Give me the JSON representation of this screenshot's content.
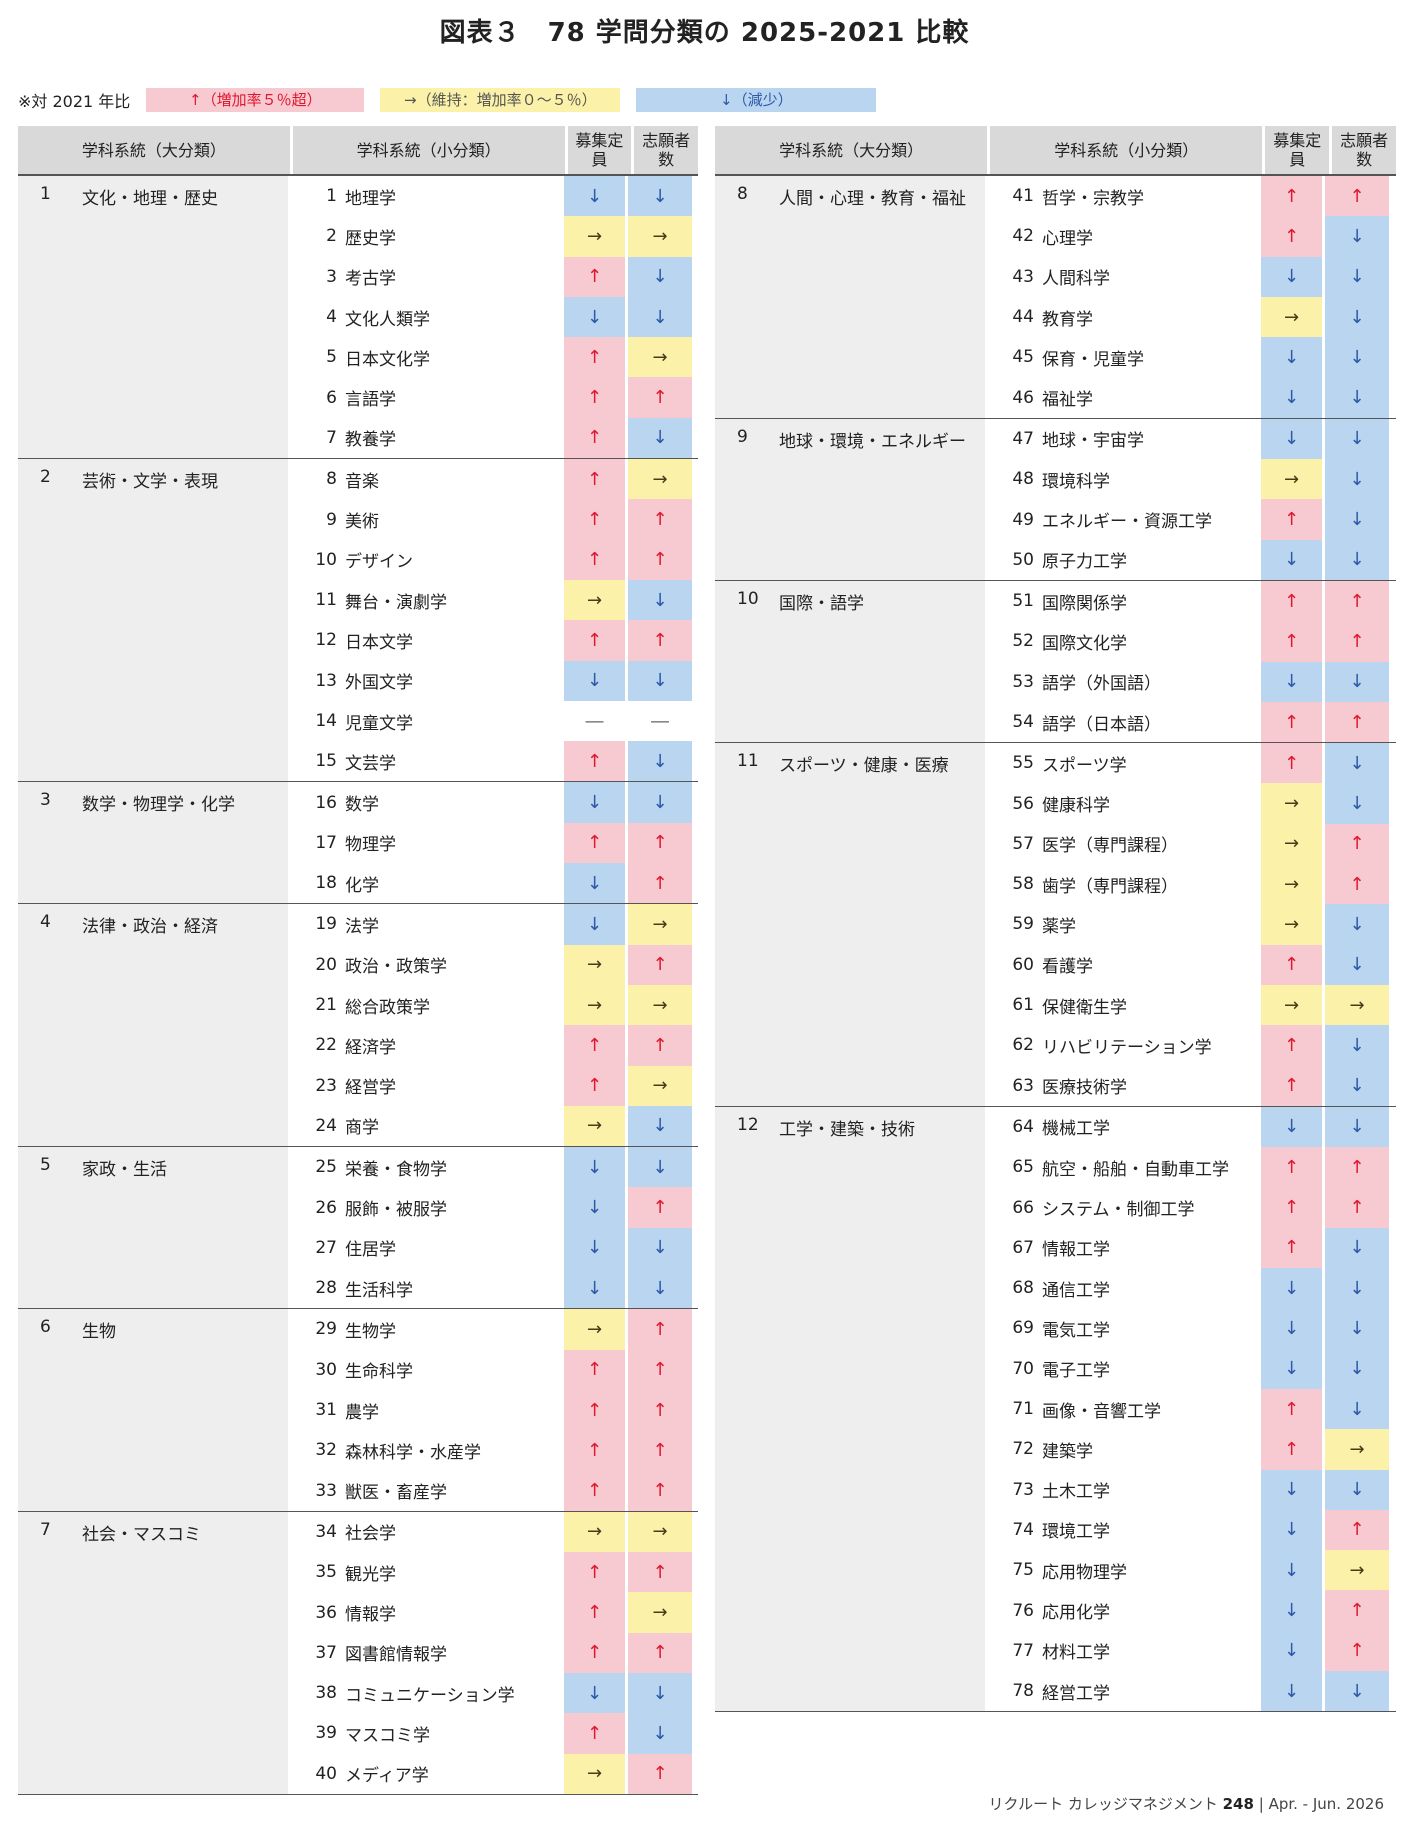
{
  "title": "図表３　78 学問分類の 2025-2021 比較",
  "legend": {
    "note": "※対 2021 年比",
    "up": "↑（増加率５％超）",
    "eq": "→（維持：増加率０～５％）",
    "dn": "↓（減少）"
  },
  "headers": {
    "major": "学科系統（大分類）",
    "minor": "学科系統（小分類）",
    "recruit": "募集定員",
    "applicants": "志願者数"
  },
  "arrow_symbols": {
    "up": "↑",
    "eq": "→",
    "dn": "↓",
    "na": "―"
  },
  "colors": {
    "up": "#f7c9d1",
    "eq": "#fbf1a9",
    "dn": "#bad5f0"
  },
  "groups": [
    {
      "num": "1",
      "name": "文化・地理・歴史",
      "items": [
        {
          "num": "1",
          "name": "地理学",
          "recruit": "dn",
          "applicants": "dn"
        },
        {
          "num": "2",
          "name": "歴史学",
          "recruit": "eq",
          "applicants": "eq"
        },
        {
          "num": "3",
          "name": "考古学",
          "recruit": "up",
          "applicants": "dn"
        },
        {
          "num": "4",
          "name": "文化人類学",
          "recruit": "dn",
          "applicants": "dn"
        },
        {
          "num": "5",
          "name": "日本文化学",
          "recruit": "up",
          "applicants": "eq"
        },
        {
          "num": "6",
          "name": "言語学",
          "recruit": "up",
          "applicants": "up"
        },
        {
          "num": "7",
          "name": "教養学",
          "recruit": "up",
          "applicants": "dn"
        }
      ]
    },
    {
      "num": "2",
      "name": "芸術・文学・表現",
      "items": [
        {
          "num": "8",
          "name": "音楽",
          "recruit": "up",
          "applicants": "eq"
        },
        {
          "num": "9",
          "name": "美術",
          "recruit": "up",
          "applicants": "up"
        },
        {
          "num": "10",
          "name": "デザイン",
          "recruit": "up",
          "applicants": "up"
        },
        {
          "num": "11",
          "name": "舞台・演劇学",
          "recruit": "eq",
          "applicants": "dn"
        },
        {
          "num": "12",
          "name": "日本文学",
          "recruit": "up",
          "applicants": "up"
        },
        {
          "num": "13",
          "name": "外国文学",
          "recruit": "dn",
          "applicants": "dn"
        },
        {
          "num": "14",
          "name": "児童文学",
          "recruit": "na",
          "applicants": "na"
        },
        {
          "num": "15",
          "name": "文芸学",
          "recruit": "up",
          "applicants": "dn"
        }
      ]
    },
    {
      "num": "3",
      "name": "数学・物理学・化学",
      "items": [
        {
          "num": "16",
          "name": "数学",
          "recruit": "dn",
          "applicants": "dn"
        },
        {
          "num": "17",
          "name": "物理学",
          "recruit": "up",
          "applicants": "up"
        },
        {
          "num": "18",
          "name": "化学",
          "recruit": "dn",
          "applicants": "up"
        }
      ]
    },
    {
      "num": "4",
      "name": "法律・政治・経済",
      "items": [
        {
          "num": "19",
          "name": "法学",
          "recruit": "dn",
          "applicants": "eq"
        },
        {
          "num": "20",
          "name": "政治・政策学",
          "recruit": "eq",
          "applicants": "up"
        },
        {
          "num": "21",
          "name": "総合政策学",
          "recruit": "eq",
          "applicants": "eq"
        },
        {
          "num": "22",
          "name": "経済学",
          "recruit": "up",
          "applicants": "up"
        },
        {
          "num": "23",
          "name": "経営学",
          "recruit": "up",
          "applicants": "eq"
        },
        {
          "num": "24",
          "name": "商学",
          "recruit": "eq",
          "applicants": "dn"
        }
      ]
    },
    {
      "num": "5",
      "name": "家政・生活",
      "items": [
        {
          "num": "25",
          "name": "栄養・食物学",
          "recruit": "dn",
          "applicants": "dn"
        },
        {
          "num": "26",
          "name": "服飾・被服学",
          "recruit": "dn",
          "applicants": "up"
        },
        {
          "num": "27",
          "name": "住居学",
          "recruit": "dn",
          "applicants": "dn"
        },
        {
          "num": "28",
          "name": "生活科学",
          "recruit": "dn",
          "applicants": "dn"
        }
      ]
    },
    {
      "num": "6",
      "name": "生物",
      "items": [
        {
          "num": "29",
          "name": "生物学",
          "recruit": "eq",
          "applicants": "up"
        },
        {
          "num": "30",
          "name": "生命科学",
          "recruit": "up",
          "applicants": "up"
        },
        {
          "num": "31",
          "name": "農学",
          "recruit": "up",
          "applicants": "up"
        },
        {
          "num": "32",
          "name": "森林科学・水産学",
          "recruit": "up",
          "applicants": "up"
        },
        {
          "num": "33",
          "name": "獣医・畜産学",
          "recruit": "up",
          "applicants": "up"
        }
      ]
    },
    {
      "num": "7",
      "name": "社会・マスコミ",
      "items": [
        {
          "num": "34",
          "name": "社会学",
          "recruit": "eq",
          "applicants": "eq"
        },
        {
          "num": "35",
          "name": "観光学",
          "recruit": "up",
          "applicants": "up"
        },
        {
          "num": "36",
          "name": "情報学",
          "recruit": "up",
          "applicants": "eq"
        },
        {
          "num": "37",
          "name": "図書館情報学",
          "recruit": "up",
          "applicants": "up"
        },
        {
          "num": "38",
          "name": "コミュニケーション学",
          "recruit": "dn",
          "applicants": "dn"
        },
        {
          "num": "39",
          "name": "マスコミ学",
          "recruit": "up",
          "applicants": "dn"
        },
        {
          "num": "40",
          "name": "メディア学",
          "recruit": "eq",
          "applicants": "up"
        }
      ]
    },
    {
      "num": "8",
      "name": "人間・心理・教育・福祉",
      "items": [
        {
          "num": "41",
          "name": "哲学・宗教学",
          "recruit": "up",
          "applicants": "up"
        },
        {
          "num": "42",
          "name": "心理学",
          "recruit": "up",
          "applicants": "dn"
        },
        {
          "num": "43",
          "name": "人間科学",
          "recruit": "dn",
          "applicants": "dn"
        },
        {
          "num": "44",
          "name": "教育学",
          "recruit": "eq",
          "applicants": "dn"
        },
        {
          "num": "45",
          "name": "保育・児童学",
          "recruit": "dn",
          "applicants": "dn"
        },
        {
          "num": "46",
          "name": "福祉学",
          "recruit": "dn",
          "applicants": "dn"
        }
      ]
    },
    {
      "num": "9",
      "name": "地球・環境・エネルギー",
      "items": [
        {
          "num": "47",
          "name": "地球・宇宙学",
          "recruit": "dn",
          "applicants": "dn"
        },
        {
          "num": "48",
          "name": "環境科学",
          "recruit": "eq",
          "applicants": "dn"
        },
        {
          "num": "49",
          "name": "エネルギー・資源工学",
          "recruit": "up",
          "applicants": "dn"
        },
        {
          "num": "50",
          "name": "原子力工学",
          "recruit": "dn",
          "applicants": "dn"
        }
      ]
    },
    {
      "num": "10",
      "name": "国際・語学",
      "items": [
        {
          "num": "51",
          "name": "国際関係学",
          "recruit": "up",
          "applicants": "up"
        },
        {
          "num": "52",
          "name": "国際文化学",
          "recruit": "up",
          "applicants": "up"
        },
        {
          "num": "53",
          "name": "語学（外国語）",
          "recruit": "dn",
          "applicants": "dn"
        },
        {
          "num": "54",
          "name": "語学（日本語）",
          "recruit": "up",
          "applicants": "up"
        }
      ]
    },
    {
      "num": "11",
      "name": "スポーツ・健康・医療",
      "items": [
        {
          "num": "55",
          "name": "スポーツ学",
          "recruit": "up",
          "applicants": "dn"
        },
        {
          "num": "56",
          "name": "健康科学",
          "recruit": "eq",
          "applicants": "dn"
        },
        {
          "num": "57",
          "name": "医学（専門課程）",
          "recruit": "eq",
          "applicants": "up"
        },
        {
          "num": "58",
          "name": "歯学（専門課程）",
          "recruit": "eq",
          "applicants": "up"
        },
        {
          "num": "59",
          "name": "薬学",
          "recruit": "eq",
          "applicants": "dn"
        },
        {
          "num": "60",
          "name": "看護学",
          "recruit": "up",
          "applicants": "dn"
        },
        {
          "num": "61",
          "name": "保健衛生学",
          "recruit": "eq",
          "applicants": "eq"
        },
        {
          "num": "62",
          "name": "リハビリテーション学",
          "recruit": "up",
          "applicants": "dn"
        },
        {
          "num": "63",
          "name": "医療技術学",
          "recruit": "up",
          "applicants": "dn"
        }
      ]
    },
    {
      "num": "12",
      "name": "工学・建築・技術",
      "items": [
        {
          "num": "64",
          "name": "機械工学",
          "recruit": "dn",
          "applicants": "dn"
        },
        {
          "num": "65",
          "name": "航空・船舶・自動車工学",
          "recruit": "up",
          "applicants": "up"
        },
        {
          "num": "66",
          "name": "システム・制御工学",
          "recruit": "up",
          "applicants": "up"
        },
        {
          "num": "67",
          "name": "情報工学",
          "recruit": "up",
          "applicants": "dn"
        },
        {
          "num": "68",
          "name": "通信工学",
          "recruit": "dn",
          "applicants": "dn"
        },
        {
          "num": "69",
          "name": "電気工学",
          "recruit": "dn",
          "applicants": "dn"
        },
        {
          "num": "70",
          "name": "電子工学",
          "recruit": "dn",
          "applicants": "dn"
        },
        {
          "num": "71",
          "name": "画像・音響工学",
          "recruit": "up",
          "applicants": "dn"
        },
        {
          "num": "72",
          "name": "建築学",
          "recruit": "up",
          "applicants": "eq"
        },
        {
          "num": "73",
          "name": "土木工学",
          "recruit": "dn",
          "applicants": "dn"
        },
        {
          "num": "74",
          "name": "環境工学",
          "recruit": "dn",
          "applicants": "up"
        },
        {
          "num": "75",
          "name": "応用物理学",
          "recruit": "dn",
          "applicants": "eq"
        },
        {
          "num": "76",
          "name": "応用化学",
          "recruit": "dn",
          "applicants": "up"
        },
        {
          "num": "77",
          "name": "材料工学",
          "recruit": "dn",
          "applicants": "up"
        },
        {
          "num": "78",
          "name": "経営工学",
          "recruit": "dn",
          "applicants": "dn"
        }
      ]
    }
  ],
  "footer": {
    "text": "リクルート カレッジマネジメント",
    "issue": "248",
    "sep": "|",
    "period": "Apr. - Jun. 2026"
  }
}
